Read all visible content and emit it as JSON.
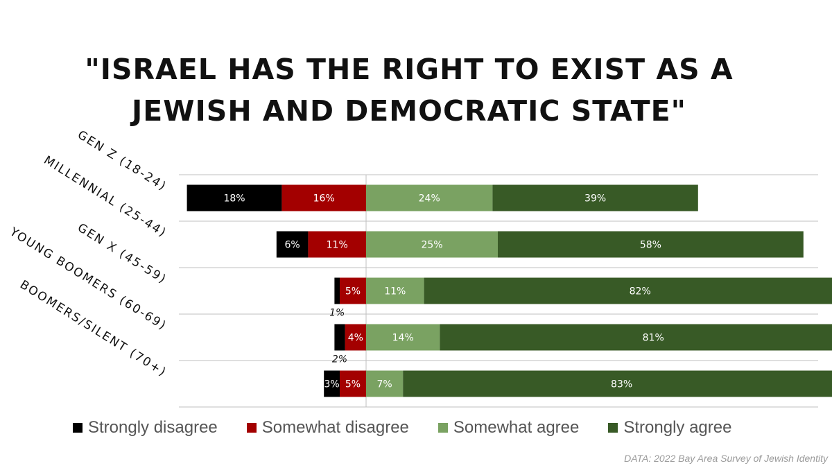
{
  "colors": {
    "strongly_disagree": "#000000",
    "somewhat_disagree": "#a30000",
    "somewhat_agree": "#7aa262",
    "strongly_agree": "#385a26"
  },
  "chart_data": {
    "type": "bar",
    "orientation": "horizontal-diverging",
    "title_lines": [
      "\"ISRAEL HAS THE RIGHT TO EXIST AS A",
      "JEWISH AND DEMOCRATIC STATE\""
    ],
    "categories": [
      "GEN Z (18-24)",
      "MILLENNIAL (25-44)",
      "GEN X (45-59)",
      "YOUNG BOOMERS (60-69)",
      "BOOMERS/SILENT (70+)"
    ],
    "series": [
      {
        "name": "Strongly disagree",
        "key": "strongly_disagree",
        "side": "left",
        "values": [
          18,
          6,
          1,
          2,
          3
        ],
        "labels": [
          "18%",
          "6%",
          "1%",
          "2%",
          "3%"
        ],
        "label_outside": [
          false,
          false,
          true,
          true,
          false
        ]
      },
      {
        "name": "Somewhat disagree",
        "key": "somewhat_disagree",
        "side": "left",
        "values": [
          16,
          11,
          5,
          4,
          5
        ],
        "labels": [
          "16%",
          "11%",
          "5%",
          "4%",
          "5%"
        ],
        "label_outside": [
          false,
          false,
          false,
          false,
          false
        ]
      },
      {
        "name": "Somewhat agree",
        "key": "somewhat_agree",
        "side": "right",
        "values": [
          24,
          25,
          11,
          14,
          7
        ],
        "labels": [
          "24%",
          "25%",
          "11%",
          "14%",
          "7%"
        ],
        "label_outside": [
          false,
          false,
          false,
          false,
          false
        ]
      },
      {
        "name": "Strongly agree",
        "key": "strongly_agree",
        "side": "right",
        "values": [
          39,
          58,
          82,
          81,
          83
        ],
        "labels": [
          "39%",
          "58%",
          "82%",
          "81%",
          "83%"
        ],
        "label_outside": [
          false,
          false,
          false,
          false,
          false
        ]
      }
    ],
    "xlabel": "",
    "ylabel": "",
    "legend_position": "bottom",
    "source": "DATA: 2022 Bay Area Survey of Jewish Identity"
  }
}
